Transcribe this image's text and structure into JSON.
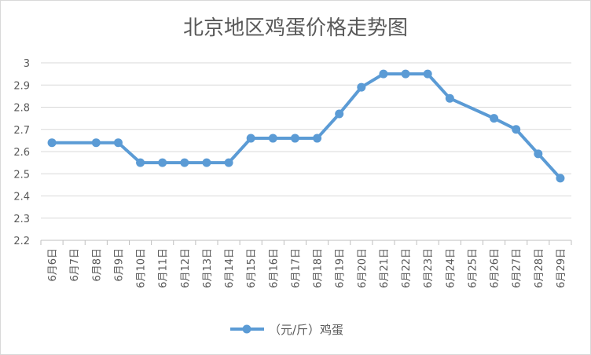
{
  "chart_data": {
    "type": "line",
    "title": "北京地区鸡蛋价格走势图",
    "xlabel": "",
    "ylabel": "",
    "ylim": [
      2.2,
      3.0
    ],
    "yticks": [
      "2.2",
      "2.3",
      "2.4",
      "2.5",
      "2.6",
      "2.7",
      "2.8",
      "2.9",
      "3"
    ],
    "grid": true,
    "legend_position": "bottom",
    "color": "#5B9BD5",
    "categories": [
      "6月6日",
      "6月7日",
      "6月8日",
      "6月9日",
      "6月10日",
      "6月11日",
      "6月12日",
      "6月13日",
      "6月14日",
      "6月15日",
      "6月16日",
      "6月17日",
      "6月18日",
      "6月19日",
      "6月20日",
      "6月21日",
      "6月22日",
      "6月23日",
      "6月24日",
      "6月25日",
      "6月26日",
      "6月27日",
      "6月28日",
      "6月29日"
    ],
    "series": [
      {
        "name": "（元/斤）鸡蛋",
        "values": [
          2.64,
          null,
          2.64,
          2.64,
          2.55,
          2.55,
          2.55,
          2.55,
          2.55,
          2.66,
          2.66,
          2.66,
          2.66,
          2.77,
          2.89,
          2.95,
          2.95,
          2.95,
          2.84,
          null,
          2.75,
          2.7,
          2.59,
          2.48
        ]
      }
    ]
  }
}
